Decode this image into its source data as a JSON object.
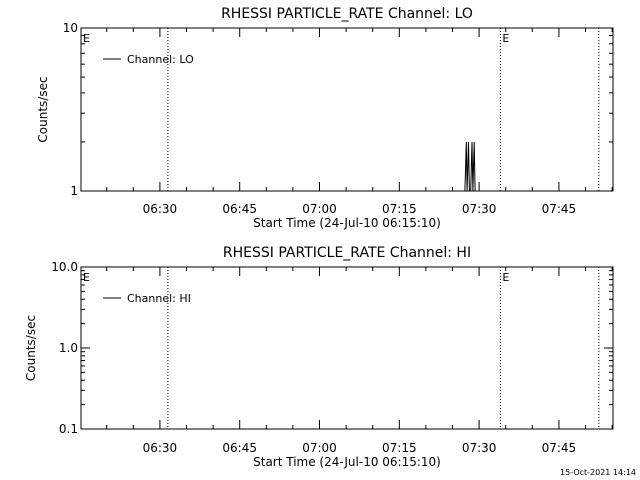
{
  "footer": {
    "timestamp": "15-Oct-2021 14:14"
  },
  "chart_data": [
    {
      "type": "line",
      "title": "RHESSI PARTICLE_RATE Channel: LO",
      "xlabel": "Start Time (24-Jul-10 06:15:10)",
      "ylabel": "Counts/sec",
      "yscale": "log",
      "ylim": [
        1,
        10
      ],
      "ytick_values": [
        1,
        10
      ],
      "ytick_labels": [
        "1",
        "10"
      ],
      "xlim": [
        "06:15:10",
        "07:55:10"
      ],
      "xtick_values": [
        "06:30",
        "06:45",
        "07:00",
        "07:15",
        "07:30",
        "07:45"
      ],
      "xtick_labels": [
        "06:30",
        "06:45",
        "07:00",
        "07:15",
        "07:30",
        "07:45"
      ],
      "series": [
        {
          "name": "Channel: LO",
          "points": [
            [
              "07:27:20",
              1
            ],
            [
              "07:27:35",
              2
            ],
            [
              "07:27:45",
              1
            ],
            [
              "07:28:00",
              2
            ],
            [
              "07:28:10",
              1
            ],
            [
              "07:28:25",
              1
            ],
            [
              "07:28:40",
              2
            ],
            [
              "07:28:50",
              1
            ],
            [
              "07:29:05",
              2
            ],
            [
              "07:29:15",
              1
            ]
          ]
        }
      ],
      "vlines": [
        "06:31:30",
        "07:34:00",
        "07:52:30"
      ],
      "annotations": [
        {
          "text": "E",
          "x": "06:15:10"
        },
        {
          "text": "E",
          "x": "07:34:00"
        }
      ],
      "legend": "top-left",
      "grid": false
    },
    {
      "type": "line",
      "title": "RHESSI PARTICLE_RATE Channel: HI",
      "xlabel": "Start Time (24-Jul-10 06:15:10)",
      "ylabel": "Counts/sec",
      "yscale": "log",
      "ylim": [
        0.1,
        10
      ],
      "ytick_values": [
        0.1,
        1,
        10
      ],
      "ytick_labels": [
        "0.1",
        "1.0",
        "10.0"
      ],
      "xlim": [
        "06:15:10",
        "07:55:10"
      ],
      "xtick_values": [
        "06:30",
        "06:45",
        "07:00",
        "07:15",
        "07:30",
        "07:45"
      ],
      "xtick_labels": [
        "06:30",
        "06:45",
        "07:00",
        "07:15",
        "07:30",
        "07:45"
      ],
      "series": [
        {
          "name": "Channel: HI",
          "points": []
        }
      ],
      "vlines": [
        "06:31:30",
        "07:34:00",
        "07:52:30"
      ],
      "annotations": [
        {
          "text": "E",
          "x": "06:15:10"
        },
        {
          "text": "E",
          "x": "07:34:00"
        }
      ],
      "legend": "top-left",
      "grid": false
    }
  ]
}
